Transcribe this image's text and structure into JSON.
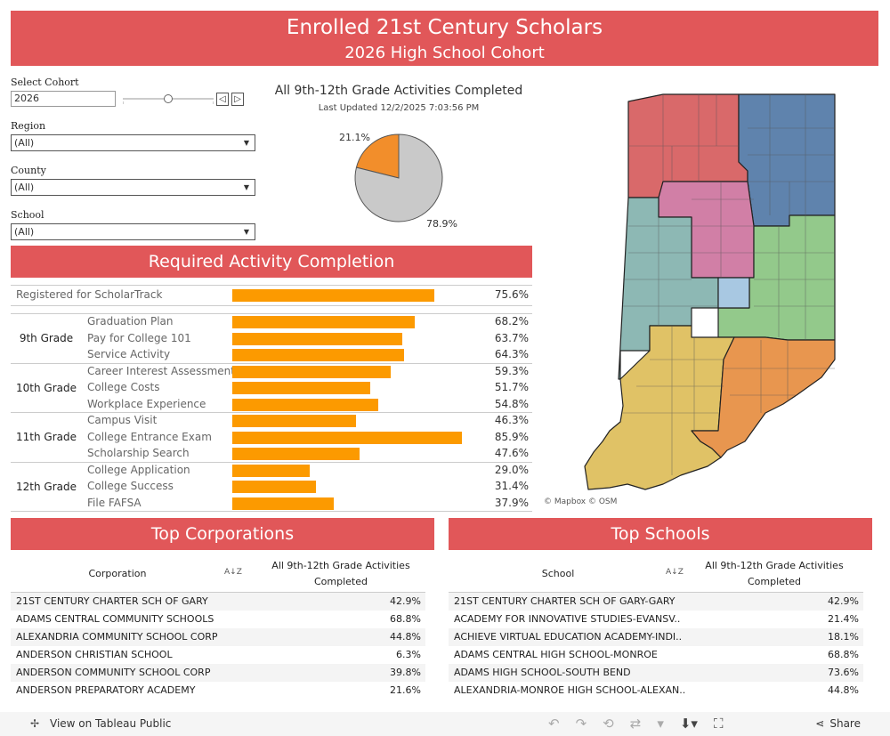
{
  "header": {
    "title": "Enrolled 21st Century Scholars",
    "subtitle": "2026 High School Cohort"
  },
  "filters": {
    "cohort": {
      "label": "Select Cohort",
      "value": "2026",
      "prev": "◁",
      "next": "▷"
    },
    "region": {
      "label": "Region",
      "value": "(All)"
    },
    "county": {
      "label": "County",
      "value": "(All)"
    },
    "school": {
      "label": "School",
      "value": "(All)"
    }
  },
  "chart_data": [
    {
      "type": "pie",
      "title": "All 9th-12th Grade Activities Completed",
      "subtitle": "Last Updated 12/2/2025 7:03:56 PM",
      "slices": [
        {
          "label": "21.1%",
          "value": 21.1,
          "color": "#f28e2b"
        },
        {
          "label": "78.9%",
          "value": 78.9,
          "color": "#c9c9c9"
        }
      ]
    },
    {
      "type": "bar",
      "title": "Required Activity Completion",
      "xlim": [
        0,
        100
      ],
      "bar_color": "#fc9a00",
      "registered": {
        "label": "Registered for ScholarTrack",
        "value": 75.6,
        "display": "75.6%"
      },
      "groups": [
        {
          "grade": "9th Grade",
          "items": [
            {
              "label": "Graduation Plan",
              "value": 68.2,
              "display": "68.2%"
            },
            {
              "label": "Pay for College 101",
              "value": 63.7,
              "display": "63.7%"
            },
            {
              "label": "Service Activity",
              "value": 64.3,
              "display": "64.3%"
            }
          ]
        },
        {
          "grade": "10th Grade",
          "items": [
            {
              "label": "Career Interest Assessment",
              "value": 59.3,
              "display": "59.3%"
            },
            {
              "label": "College Costs",
              "value": 51.7,
              "display": "51.7%"
            },
            {
              "label": "Workplace Experience",
              "value": 54.8,
              "display": "54.8%"
            }
          ]
        },
        {
          "grade": "11th Grade",
          "items": [
            {
              "label": "Campus Visit",
              "value": 46.3,
              "display": "46.3%"
            },
            {
              "label": "College Entrance Exam",
              "value": 85.9,
              "display": "85.9%"
            },
            {
              "label": "Scholarship Search",
              "value": 47.6,
              "display": "47.6%"
            }
          ]
        },
        {
          "grade": "12th Grade",
          "items": [
            {
              "label": "College Application",
              "value": 29.0,
              "display": "29.0%"
            },
            {
              "label": "College Success",
              "value": 31.4,
              "display": "31.4%"
            },
            {
              "label": "File FAFSA",
              "value": 37.9,
              "display": "37.9%"
            }
          ]
        }
      ]
    }
  ],
  "map": {
    "attribution": "© Mapbox  © OSM",
    "region_colors": [
      "#d9696a",
      "#5f83ad",
      "#d17fa6",
      "#8db8b4",
      "#93c98b",
      "#a8c8e2",
      "#e0c266",
      "#e8964f"
    ]
  },
  "corporations": {
    "section_title": "Top Corporations",
    "col1": "Corporation",
    "col2_line1": "All 9th-12th Grade Activities",
    "col2_line2": "Completed",
    "sort_icon": "A↓Z",
    "rows": [
      {
        "name": "21ST CENTURY CHARTER SCH OF GARY",
        "value": "42.9%"
      },
      {
        "name": "ADAMS CENTRAL COMMUNITY SCHOOLS",
        "value": "68.8%"
      },
      {
        "name": "ALEXANDRIA COMMUNITY SCHOOL CORP",
        "value": "44.8%"
      },
      {
        "name": "ANDERSON CHRISTIAN SCHOOL",
        "value": "6.3%"
      },
      {
        "name": "ANDERSON COMMUNITY SCHOOL CORP",
        "value": "39.8%"
      },
      {
        "name": "ANDERSON PREPARATORY ACADEMY",
        "value": "21.6%"
      }
    ]
  },
  "schools": {
    "section_title": "Top Schools",
    "col1": "School",
    "col2_line1": "All 9th-12th Grade Activities",
    "col2_line2": "Completed",
    "sort_icon": "A↓Z",
    "rows": [
      {
        "name": "21ST CENTURY CHARTER SCH OF GARY-GARY",
        "value": "42.9%"
      },
      {
        "name": "ACADEMY FOR INNOVATIVE STUDIES-EVANSV..",
        "value": "21.4%"
      },
      {
        "name": "ACHIEVE VIRTUAL EDUCATION ACADEMY-INDI..",
        "value": "18.1%"
      },
      {
        "name": "ADAMS CENTRAL HIGH SCHOOL-MONROE",
        "value": "68.8%"
      },
      {
        "name": "ADAMS HIGH SCHOOL-SOUTH BEND",
        "value": "73.6%"
      },
      {
        "name": "ALEXANDRIA-MONROE HIGH SCHOOL-ALEXAN..",
        "value": "44.8%"
      }
    ]
  },
  "footer": {
    "view_label": "View on Tableau Public",
    "share_label": "Share"
  }
}
